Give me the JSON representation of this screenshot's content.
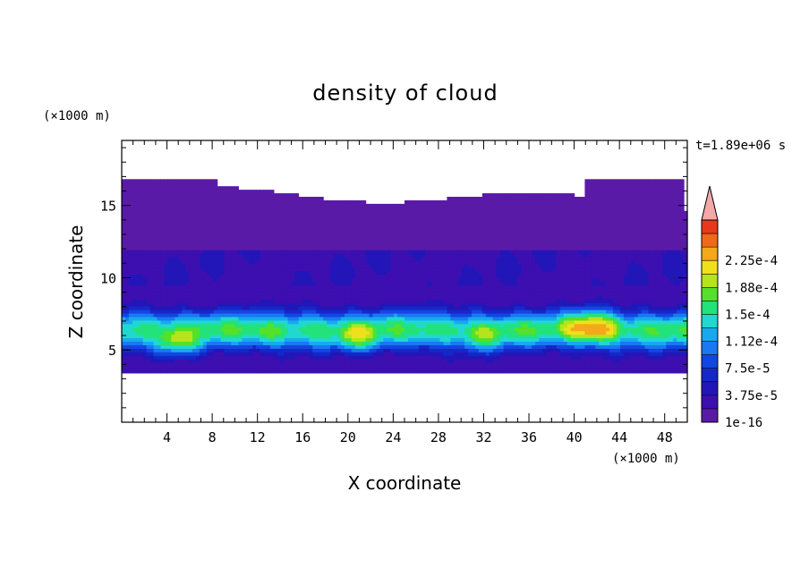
{
  "chart_data": {
    "type": "heatmap",
    "title": "density of cloud",
    "xlabel": "X coordinate",
    "ylabel": "Z coordinate",
    "x_unit": "(×1000 m)",
    "y_unit": "(×1000 m)",
    "time_label": "t=1.89e+06 s",
    "xlim": [
      0,
      50
    ],
    "ylim": [
      0,
      19.5
    ],
    "x_ticks": [
      "4",
      "8",
      "12",
      "16",
      "20",
      "24",
      "28",
      "32",
      "36",
      "40",
      "44",
      "48"
    ],
    "y_ticks": [
      "5",
      "10",
      "15"
    ],
    "colorbar": {
      "labels": [
        "2.25e-4",
        "1.88e-4",
        "1.5e-4",
        "1.12e-4",
        "7.5e-5",
        "3.75e-5",
        "1e-16"
      ],
      "levels": [
        1e-16,
        1.875e-05,
        3.75e-05,
        5.625e-05,
        7.5e-05,
        9.375e-05,
        0.0001125,
        0.00013125,
        0.00015,
        0.00016875,
        0.0001875,
        0.00020625,
        0.000225,
        0.00024375
      ],
      "colors": [
        "#5a1aa8",
        "#3d0fb0",
        "#2216b8",
        "#1428c8",
        "#1246e0",
        "#1a78f0",
        "#18a8f0",
        "#20d8d0",
        "#22e27a",
        "#55e12a",
        "#b5e41c",
        "#f0e01c",
        "#f4a81a",
        "#ee6a18",
        "#e83a1a"
      ],
      "extend_color": "#f4a8a8"
    },
    "cloud_layers_km": [
      {
        "from": 3.5,
        "to": 5.2,
        "level": "1e-16 to 7.5e-5"
      },
      {
        "from": 5.2,
        "to": 7.8,
        "level": "7.5e-5 to 2.25e-4"
      },
      {
        "from": 7.8,
        "to": 14.5,
        "level": "1e-16 to 7.5e-5"
      },
      {
        "from": 14.5,
        "to": 16.7,
        "level": "1e-16"
      }
    ]
  }
}
